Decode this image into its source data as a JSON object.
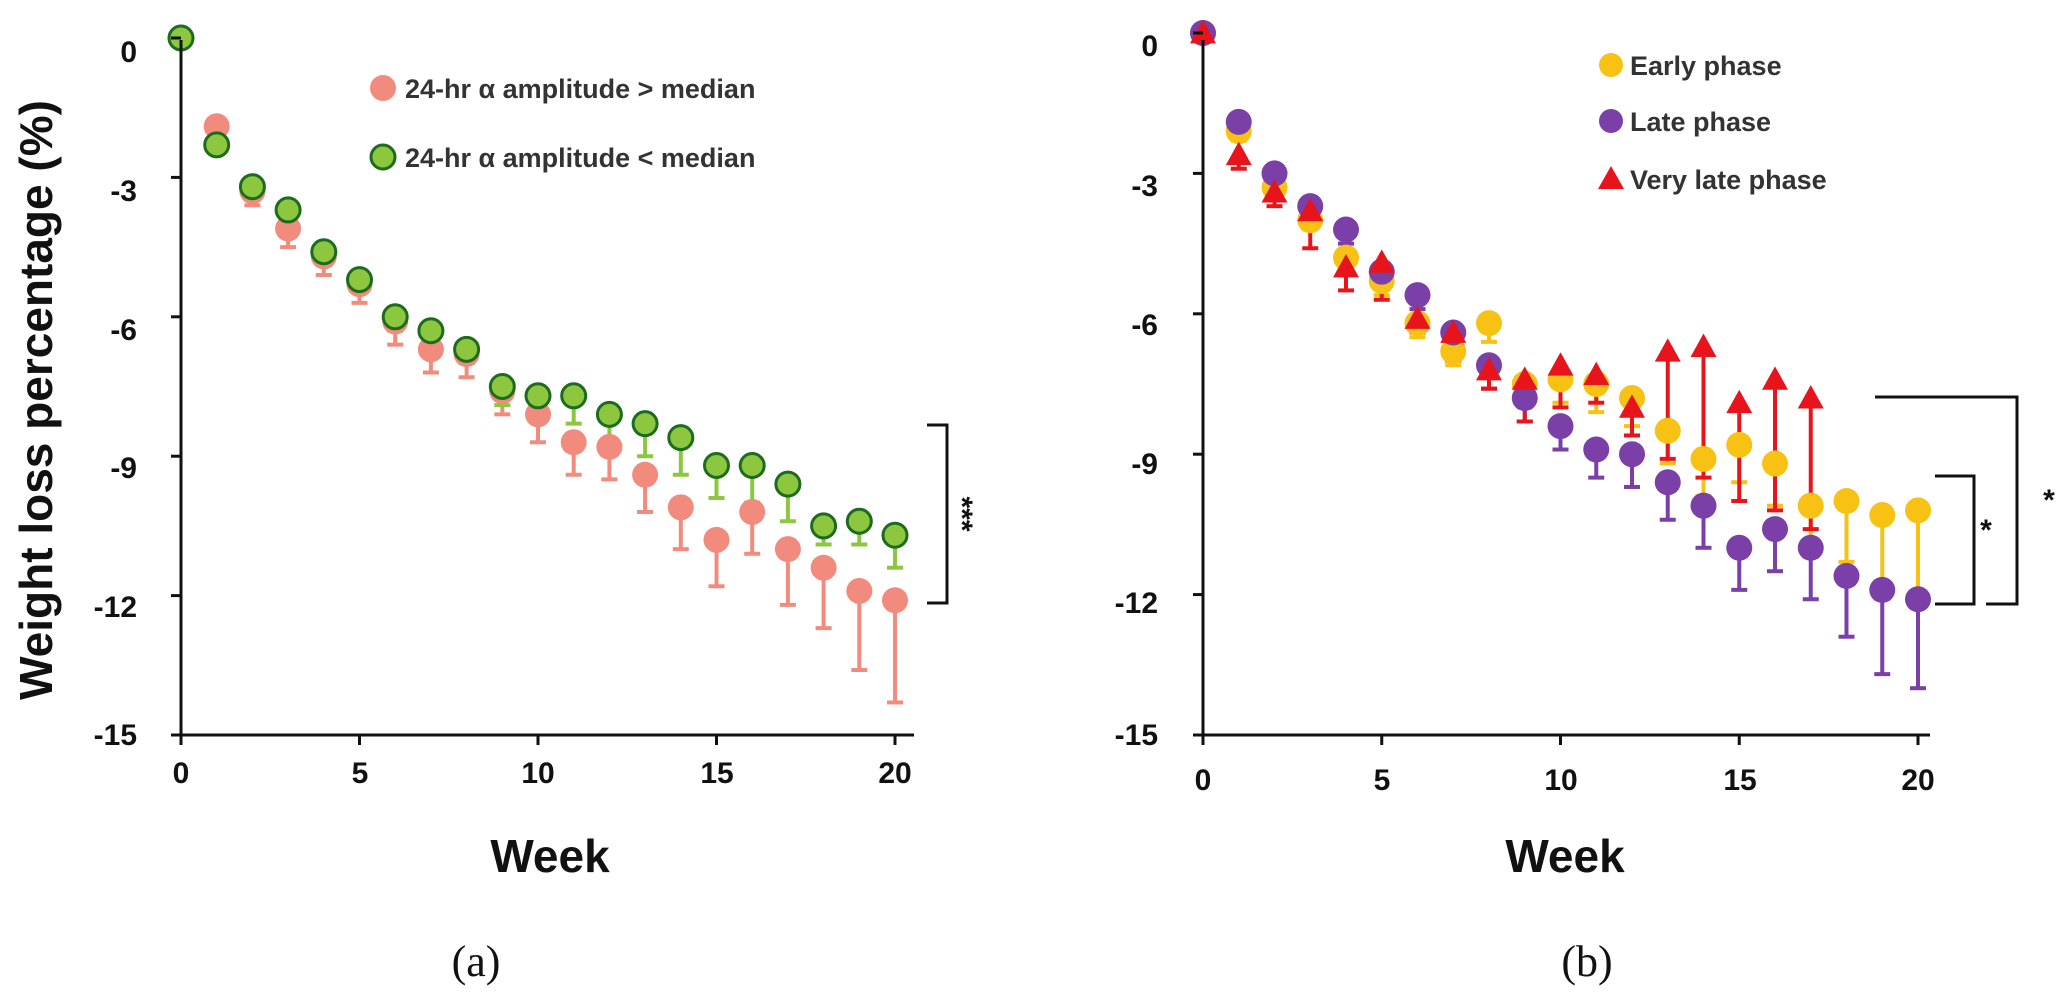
{
  "chart_data": [
    {
      "type": "scatter",
      "panel_label": "(a)",
      "title": "",
      "xlabel": "Week",
      "ylabel": "Weight loss percentage (%)",
      "xlim": [
        0,
        20
      ],
      "ylim": [
        -15,
        0
      ],
      "xticks": [
        "0",
        "5",
        "10",
        "15",
        "20"
      ],
      "yticks": [
        "0",
        "-3",
        "-6",
        "-9",
        "-12",
        "-15"
      ],
      "grid": false,
      "legend_position": "top-right",
      "series": [
        {
          "name": "24-hr α amplitude > median",
          "color": "#f08b7e",
          "marker": "circle",
          "x": [
            1,
            2,
            3,
            4,
            5,
            6,
            7,
            8,
            9,
            10,
            11,
            12,
            13,
            14,
            15,
            16,
            17,
            18,
            19,
            20
          ],
          "values": [
            -1.9,
            -3.3,
            -4.1,
            -4.7,
            -5.3,
            -6.1,
            -6.7,
            -6.8,
            -7.6,
            -8.1,
            -8.7,
            -8.8,
            -9.4,
            -10.1,
            -10.8,
            -10.2,
            -11.0,
            -11.4,
            -11.9,
            -12.1
          ],
          "error": [
            0.3,
            0.3,
            0.4,
            0.4,
            0.4,
            0.5,
            0.5,
            0.5,
            0.5,
            0.6,
            0.7,
            0.7,
            0.8,
            0.9,
            1.0,
            0.9,
            1.2,
            1.3,
            1.7,
            2.2
          ]
        },
        {
          "name": "24-hr α amplitude < median",
          "color": "#8dc63f",
          "marker": "circle-outline-dark-green",
          "x": [
            0,
            1,
            2,
            3,
            4,
            5,
            6,
            7,
            8,
            9,
            10,
            11,
            12,
            13,
            14,
            15,
            16,
            17,
            18,
            19,
            20
          ],
          "values": [
            0,
            -2.3,
            -3.2,
            -3.7,
            -4.6,
            -5.2,
            -6.0,
            -6.3,
            -6.7,
            -7.5,
            -7.7,
            -7.7,
            -8.1,
            -8.3,
            -8.6,
            -9.2,
            -9.2,
            -9.6,
            -10.5,
            -10.4,
            -10.7
          ],
          "error": [
            0,
            0.2,
            0.2,
            0.2,
            0.2,
            0.2,
            0.3,
            0.3,
            0.3,
            0.4,
            0.5,
            0.6,
            0.6,
            0.7,
            0.8,
            0.7,
            0.8,
            0.8,
            0.4,
            0.5,
            0.7
          ]
        }
      ],
      "annotations": [
        {
          "text": "***",
          "between_series": [
            0,
            1
          ]
        }
      ]
    },
    {
      "type": "scatter",
      "panel_label": "(b)",
      "title": "",
      "xlabel": "Week",
      "ylabel": "",
      "xlim": [
        0,
        20
      ],
      "ylim": [
        -15,
        0
      ],
      "xticks": [
        "0",
        "5",
        "10",
        "15",
        "20"
      ],
      "yticks": [
        "0",
        "-3",
        "-6",
        "-9",
        "-12",
        "-15"
      ],
      "grid": false,
      "legend_position": "top-right",
      "series": [
        {
          "name": "Early phase",
          "color": "#f7c213",
          "marker": "circle",
          "x": [
            0,
            1,
            2,
            3,
            4,
            5,
            6,
            7,
            8,
            9,
            10,
            11,
            12,
            13,
            14,
            15,
            16,
            17,
            18,
            19,
            20
          ],
          "values": [
            0,
            -2.1,
            -3.3,
            -4.0,
            -4.8,
            -5.3,
            -6.2,
            -6.8,
            -6.2,
            -7.5,
            -7.4,
            -7.5,
            -7.8,
            -8.5,
            -9.1,
            -8.8,
            -9.2,
            -10.1,
            -10.0,
            -10.3,
            -10.2
          ],
          "error": [
            0,
            0.2,
            0.2,
            0.2,
            0.2,
            0.3,
            0.3,
            0.3,
            0.4,
            0.5,
            0.5,
            0.6,
            0.6,
            0.7,
            0.8,
            0.8,
            0.9,
            1.1,
            1.3,
            1.8,
            1.9
          ]
        },
        {
          "name": "Late phase",
          "color": "#7b3fa8",
          "marker": "circle",
          "x": [
            0,
            1,
            2,
            3,
            4,
            5,
            6,
            7,
            8,
            9,
            10,
            11,
            12,
            13,
            14,
            15,
            16,
            17,
            18,
            19,
            20
          ],
          "values": [
            0,
            -1.9,
            -3.0,
            -3.7,
            -4.2,
            -5.1,
            -5.6,
            -6.4,
            -7.1,
            -7.8,
            -8.4,
            -8.9,
            -9.0,
            -9.6,
            -10.1,
            -11.0,
            -10.6,
            -11.0,
            -11.6,
            -11.9,
            -12.1
          ],
          "error": [
            0,
            0.2,
            0.2,
            0.2,
            0.3,
            0.3,
            0.3,
            0.4,
            0.5,
            0.5,
            0.5,
            0.6,
            0.7,
            0.8,
            0.9,
            0.9,
            0.9,
            1.1,
            1.3,
            1.8,
            1.9
          ]
        },
        {
          "name": "Very late phase",
          "color": "#e8141c",
          "marker": "triangle",
          "x": [
            0,
            1,
            2,
            3,
            4,
            5,
            6,
            7,
            8,
            9,
            10,
            11,
            12,
            13,
            14,
            15,
            16,
            17
          ],
          "values": [
            0,
            -2.6,
            -3.4,
            -3.8,
            -5.0,
            -4.9,
            -6.1,
            -6.4,
            -7.2,
            -7.4,
            -7.1,
            -7.3,
            -8.0,
            -6.8,
            -6.7,
            -7.9,
            -7.4,
            -7.8
          ],
          "error": [
            0,
            0.3,
            0.3,
            0.8,
            0.5,
            0.8,
            0.3,
            0.6,
            0.4,
            0.9,
            0.9,
            0.6,
            0.6,
            2.3,
            2.8,
            2.1,
            2.8,
            2.8
          ]
        }
      ],
      "annotations": [
        {
          "text": "*",
          "between_series": [
            0,
            1
          ]
        },
        {
          "text": "*",
          "between_series": [
            1,
            2
          ]
        }
      ]
    }
  ]
}
